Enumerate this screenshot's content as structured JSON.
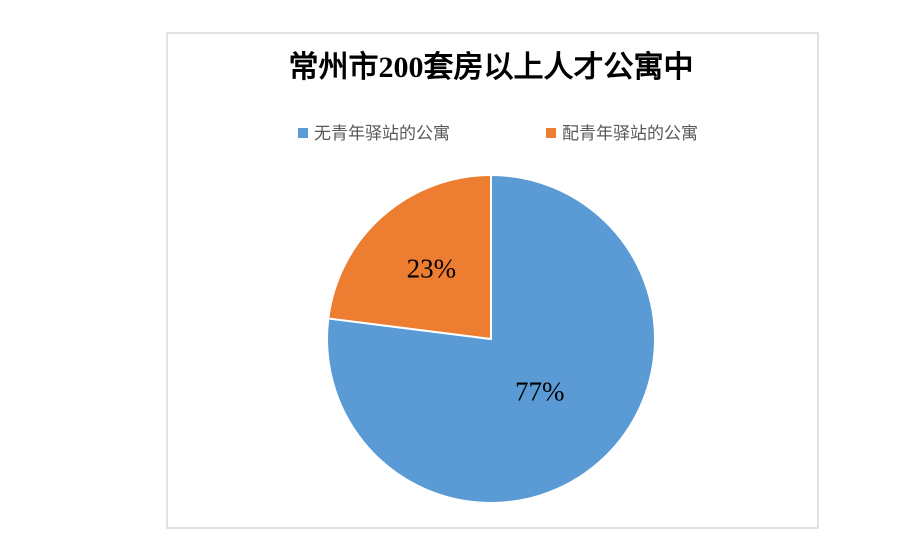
{
  "chart_data": {
    "type": "pie",
    "title": "常州市200套房以上人才公寓中",
    "categories": [
      "无青年驿站的公寓",
      "配青年驿站的公寓"
    ],
    "values": [
      77,
      23
    ],
    "value_labels": [
      "77%",
      "23%"
    ],
    "colors": [
      "#5b9bd5",
      "#ed7d31"
    ]
  }
}
